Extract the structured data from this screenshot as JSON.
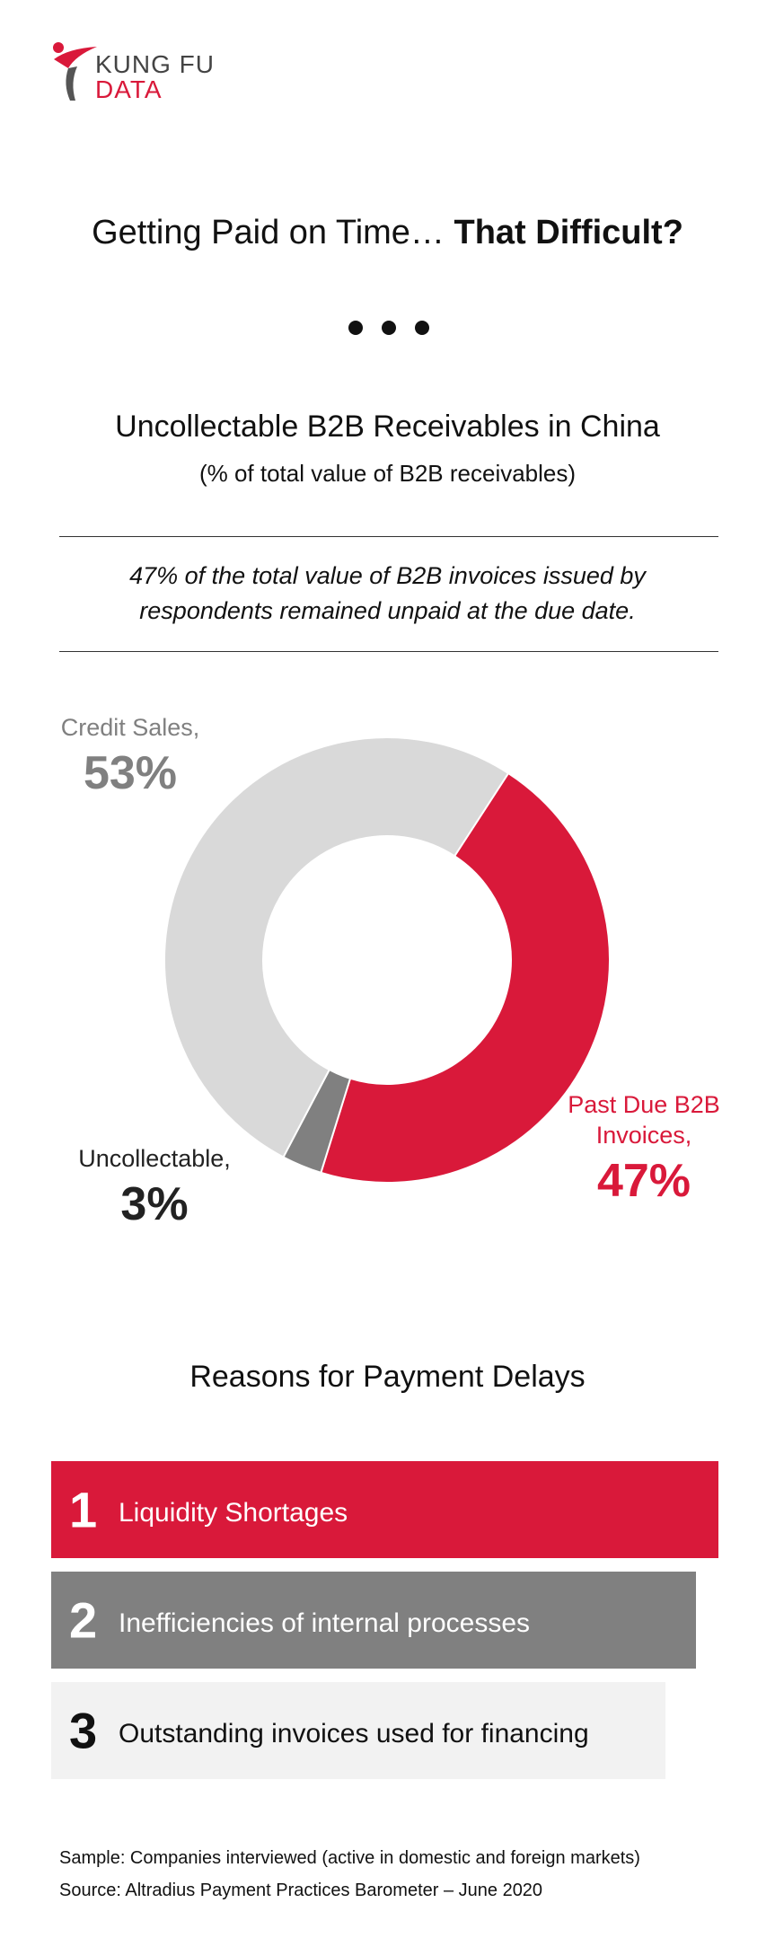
{
  "header": {
    "logo_top": "KUNG FU",
    "logo_bottom": "DATA"
  },
  "title": {
    "regular": "Getting Paid on Time…",
    "bold": "That Difficult?"
  },
  "chart_data": {
    "type": "donut",
    "title": "Uncollectable B2B Receivables in China",
    "subtitle": "(% of total value of B2B receivables)",
    "annotation": "47% of the total value of B2B invoices issued by respondents remained unpaid at the due date.",
    "categories": [
      "Past Due B2B Invoices,",
      "Uncollectable,",
      "Credit Sales,"
    ],
    "values": [
      47,
      3,
      53
    ],
    "value_labels": [
      "47%",
      "3%",
      "53%"
    ],
    "colors": [
      "#d9193a",
      "#808080",
      "#d9d9d9"
    ]
  },
  "reasons": {
    "title": "Reasons for Payment Delays",
    "items": [
      {
        "rank": "1",
        "text": "Liquidity Shortages"
      },
      {
        "rank": "2",
        "text": "Inefficiencies of internal processes"
      },
      {
        "rank": "3",
        "text": "Outstanding invoices used for financing"
      }
    ]
  },
  "footer": {
    "sample": "Sample: Companies interviewed (active in domestic and foreign markets)",
    "source": "Source: Altradius Payment Practices Barometer – June 2020"
  }
}
